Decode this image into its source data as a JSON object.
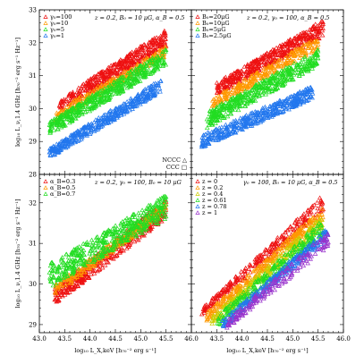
{
  "chart_data": [
    {
      "type": "scatter",
      "panel": "top-left",
      "title": "z = 0.2, B₀ = 10 μG, α_B = 0.5",
      "ylabel": "log₁₀ L_ν,1.4 GHz [h₇₀⁻² erg s⁻¹ Hz⁻¹]",
      "xlim": [
        43.0,
        46.0
      ],
      "ylim": [
        28,
        33
      ],
      "legend_position": "top-left",
      "extra_legend": [
        "NCCC △",
        "CCC □"
      ],
      "series": [
        {
          "name": "γ₀=100",
          "color": "#ee1111",
          "x_range": [
            43.4,
            45.5
          ],
          "y_start": [
            29.9,
            30.3
          ],
          "y_end": [
            31.9,
            32.4
          ],
          "points": 420
        },
        {
          "name": "γ₀=10",
          "color": "#ff9900",
          "x_range": [
            43.3,
            45.5
          ],
          "y_start": [
            29.6,
            29.9
          ],
          "y_end": [
            31.6,
            31.9
          ],
          "points": 260
        },
        {
          "name": "γ₀=5",
          "color": "#22dd22",
          "x_range": [
            43.2,
            45.5
          ],
          "y_start": [
            29.2,
            29.6
          ],
          "y_end": [
            31.3,
            31.8
          ],
          "points": 480
        },
        {
          "name": "γ₀=1",
          "color": "#2277ee",
          "x_range": [
            43.2,
            45.4
          ],
          "y_start": [
            28.5,
            28.8
          ],
          "y_end": [
            30.5,
            30.9
          ],
          "points": 420
        }
      ]
    },
    {
      "type": "scatter",
      "panel": "top-right",
      "title": "z = 0.2, γ₀ = 100, α_B = 0.5",
      "xlim": [
        43.0,
        46.0
      ],
      "ylim": [
        28,
        33
      ],
      "legend_position": "top-left",
      "series": [
        {
          "name": "B₀=20μG",
          "color": "#ee1111",
          "x_range": [
            43.5,
            45.6
          ],
          "y_start": [
            30.4,
            30.8
          ],
          "y_end": [
            32.2,
            32.7
          ],
          "points": 440
        },
        {
          "name": "B₀=10μG",
          "color": "#ff9900",
          "x_range": [
            43.4,
            45.5
          ],
          "y_start": [
            30.0,
            30.3
          ],
          "y_end": [
            31.8,
            32.2
          ],
          "points": 260
        },
        {
          "name": "B₀=5μG",
          "color": "#22dd22",
          "x_range": [
            43.3,
            45.5
          ],
          "y_start": [
            29.4,
            29.9
          ],
          "y_end": [
            31.3,
            31.8
          ],
          "points": 460
        },
        {
          "name": "B₀=2.5μG",
          "color": "#2277ee",
          "x_range": [
            43.2,
            45.4
          ],
          "y_start": [
            28.8,
            29.2
          ],
          "y_end": [
            30.3,
            30.7
          ],
          "points": 420
        }
      ]
    },
    {
      "type": "scatter",
      "panel": "bottom-left",
      "title": "z = 0.2, γ₀ = 100, B₀ = 10 μG",
      "xlabel": "log₁₀ L_X,keV [h₇₀⁻² erg s⁻¹]",
      "ylabel": "log₁₀ L_ν,1.4 GHz [h₇₀⁻² erg s⁻¹ Hz⁻¹]",
      "xlim": [
        43.0,
        46.0
      ],
      "ylim": [
        28.8,
        32.7
      ],
      "legend_position": "top-left",
      "series": [
        {
          "name": "α_B=0.3",
          "color": "#ee1111",
          "x_range": [
            43.3,
            45.5
          ],
          "y_start": [
            29.5,
            29.9
          ],
          "y_end": [
            31.6,
            32.1
          ],
          "points": 420
        },
        {
          "name": "α_B=0.5",
          "color": "#ff9900",
          "x_range": [
            43.3,
            45.5
          ],
          "y_start": [
            29.7,
            30.0
          ],
          "y_end": [
            31.8,
            32.0
          ],
          "points": 240
        },
        {
          "name": "α_B=0.7",
          "color": "#22dd22",
          "x_range": [
            43.2,
            45.5
          ],
          "y_start": [
            29.9,
            30.5
          ],
          "y_end": [
            31.6,
            32.2
          ],
          "points": 460
        }
      ]
    },
    {
      "type": "scatter",
      "panel": "bottom-right",
      "title": "γ₀ = 100, B₀ = 10 μG, α_B = 0.5",
      "xlabel": "log₁₀ L_X,keV [h₇₀⁻² erg s⁻¹]",
      "xlim": [
        43.0,
        46.0
      ],
      "ylim": [
        28.8,
        32.7
      ],
      "legend_position": "top-left",
      "series": [
        {
          "name": "z = 0",
          "color": "#ee1111",
          "x_range": [
            43.2,
            45.6
          ],
          "y_start": [
            29.2,
            29.4
          ],
          "y_end": [
            31.8,
            32.2
          ],
          "points": 260
        },
        {
          "name": "z = 0.2",
          "color": "#ff9900",
          "x_range": [
            43.3,
            45.6
          ],
          "y_start": [
            29.1,
            29.3
          ],
          "y_end": [
            31.6,
            31.9
          ],
          "points": 260
        },
        {
          "name": "z = 0.4",
          "color": "#cccc00",
          "x_range": [
            43.4,
            45.6
          ],
          "y_start": [
            29.0,
            29.2
          ],
          "y_end": [
            31.4,
            31.7
          ],
          "points": 260
        },
        {
          "name": "z = 0.61",
          "color": "#22dd22",
          "x_range": [
            43.5,
            45.6
          ],
          "y_start": [
            28.9,
            29.2
          ],
          "y_end": [
            31.2,
            31.6
          ],
          "points": 260
        },
        {
          "name": "z = 0.78",
          "color": "#2277ee",
          "x_range": [
            43.6,
            45.7
          ],
          "y_start": [
            28.9,
            29.1
          ],
          "y_end": [
            31.1,
            31.4
          ],
          "points": 260
        },
        {
          "name": "z = 1",
          "color": "#9933cc",
          "x_range": [
            43.7,
            45.7
          ],
          "y_start": [
            28.9,
            29.1
          ],
          "y_end": [
            30.9,
            31.3
          ],
          "points": 180
        }
      ]
    }
  ],
  "axes": {
    "x_ticks": [
      "43.0",
      "43.5",
      "44.0",
      "44.5",
      "45.0",
      "45.5",
      "46.0"
    ],
    "top_y_ticks": [
      "28",
      "29",
      "30",
      "31",
      "32",
      "33"
    ],
    "bottom_y_ticks": [
      "29",
      "30",
      "31",
      "32"
    ]
  }
}
